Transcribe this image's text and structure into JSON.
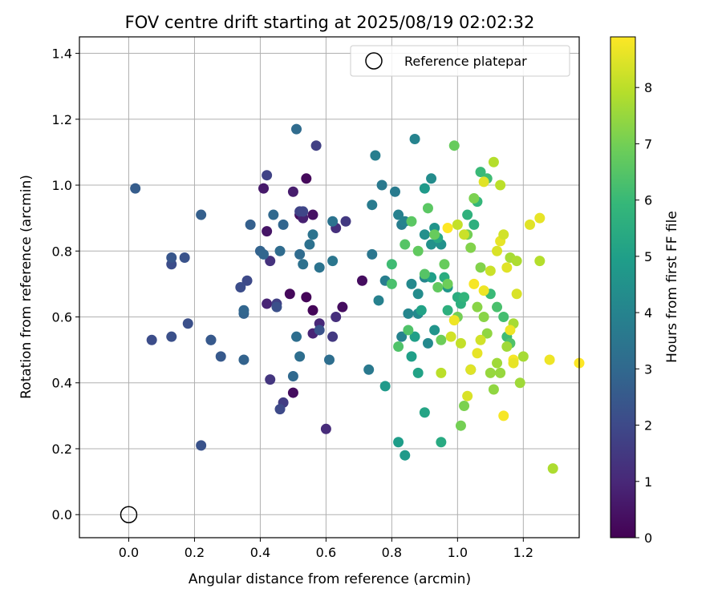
{
  "chart_data": {
    "type": "scatter",
    "title": "FOV centre drift starting at 2025/08/19 02:02:32",
    "xlabel": "Angular distance from reference (arcmin)",
    "ylabel": "Rotation from reference (arcmin)",
    "xlim": [
      -0.15,
      1.37
    ],
    "ylim": [
      -0.07,
      1.45
    ],
    "xticks": [
      "0.0",
      "0.2",
      "0.4",
      "0.6",
      "0.8",
      "1.0",
      "1.2"
    ],
    "xtick_values": [
      0.0,
      0.2,
      0.4,
      0.6,
      0.8,
      1.0,
      1.2
    ],
    "yticks": [
      "0.0",
      "0.2",
      "0.4",
      "0.6",
      "0.8",
      "1.0",
      "1.2",
      "1.4"
    ],
    "ytick_values": [
      0.0,
      0.2,
      0.4,
      0.6,
      0.8,
      1.0,
      1.2,
      1.4
    ],
    "grid": true,
    "legend": {
      "placement": "top-right",
      "entries": [
        "Reference platepar"
      ]
    },
    "reference_point": {
      "x": 0.0,
      "y": 0.0
    },
    "colorbar": {
      "label": "Hours from first FF file",
      "colormap": "viridis",
      "range": [
        0,
        8.9
      ],
      "ticks": [
        "0",
        "1",
        "2",
        "3",
        "4",
        "5",
        "6",
        "7",
        "8"
      ],
      "tick_values": [
        0,
        1,
        2,
        3,
        4,
        5,
        6,
        7,
        8
      ]
    },
    "points": [
      [
        0.52,
        0.91,
        0.3
      ],
      [
        0.54,
        1.02,
        0.2
      ],
      [
        0.56,
        0.91,
        0.4
      ],
      [
        0.49,
        0.67,
        0.2
      ],
      [
        0.54,
        0.66,
        0.1
      ],
      [
        0.56,
        0.62,
        0.1
      ],
      [
        0.5,
        0.37,
        0.3
      ],
      [
        0.71,
        0.71,
        0.3
      ],
      [
        0.65,
        0.63,
        0.3
      ],
      [
        0.42,
        0.86,
        0.5
      ],
      [
        0.41,
        0.99,
        0.6
      ],
      [
        0.5,
        0.98,
        0.7
      ],
      [
        0.53,
        0.9,
        0.8
      ],
      [
        0.42,
        0.64,
        0.9
      ],
      [
        0.56,
        0.55,
        0.9
      ],
      [
        0.58,
        0.58,
        1.0
      ],
      [
        0.6,
        0.26,
        1.1
      ],
      [
        0.63,
        0.6,
        1.2
      ],
      [
        0.63,
        0.87,
        1.2
      ],
      [
        0.66,
        0.89,
        1.5
      ],
      [
        0.43,
        0.77,
        1.3
      ],
      [
        0.43,
        0.41,
        1.4
      ],
      [
        0.47,
        0.34,
        1.6
      ],
      [
        0.45,
        0.64,
        1.7
      ],
      [
        0.62,
        0.54,
        1.5
      ],
      [
        0.57,
        1.12,
        1.7
      ],
      [
        0.42,
        1.03,
        1.8
      ],
      [
        0.52,
        0.92,
        1.8
      ],
      [
        0.53,
        0.92,
        1.9
      ],
      [
        0.36,
        0.71,
        2.0
      ],
      [
        0.34,
        0.69,
        2.1
      ],
      [
        0.45,
        0.63,
        2.2
      ],
      [
        0.46,
        0.32,
        2.0
      ],
      [
        0.58,
        0.56,
        2.3
      ],
      [
        0.07,
        0.53,
        2.1
      ],
      [
        0.13,
        0.54,
        2.2
      ],
      [
        0.13,
        0.76,
        2.1
      ],
      [
        0.13,
        0.78,
        2.4
      ],
      [
        0.17,
        0.78,
        2.3
      ],
      [
        0.18,
        0.58,
        2.2
      ],
      [
        0.22,
        0.21,
        2.3
      ],
      [
        0.25,
        0.53,
        2.4
      ],
      [
        0.25,
        0.53,
        2.5
      ],
      [
        0.28,
        0.48,
        2.5
      ],
      [
        0.02,
        0.99,
        2.6
      ],
      [
        0.22,
        0.91,
        2.7
      ],
      [
        0.35,
        0.61,
        2.8
      ],
      [
        0.35,
        0.62,
        2.9
      ],
      [
        0.35,
        0.47,
        2.8
      ],
      [
        0.37,
        0.88,
        2.7
      ],
      [
        0.4,
        0.8,
        2.8
      ],
      [
        0.41,
        0.79,
        2.9
      ],
      [
        0.44,
        0.91,
        3.0
      ],
      [
        0.46,
        0.8,
        3.1
      ],
      [
        0.47,
        0.88,
        2.9
      ],
      [
        0.5,
        0.42,
        3.0
      ],
      [
        0.51,
        0.54,
        3.2
      ],
      [
        0.51,
        1.17,
        3.1
      ],
      [
        0.52,
        0.79,
        3.1
      ],
      [
        0.52,
        0.48,
        3.2
      ],
      [
        0.53,
        0.76,
        3.3
      ],
      [
        0.55,
        0.82,
        3.3
      ],
      [
        0.56,
        0.85,
        3.4
      ],
      [
        0.58,
        0.75,
        3.4
      ],
      [
        0.61,
        0.47,
        3.2
      ],
      [
        0.62,
        0.89,
        3.4
      ],
      [
        0.62,
        0.77,
        3.5
      ],
      [
        0.73,
        0.44,
        3.6
      ],
      [
        0.74,
        0.94,
        3.7
      ],
      [
        0.74,
        0.79,
        3.5
      ],
      [
        0.75,
        1.09,
        3.8
      ],
      [
        0.76,
        0.65,
        3.9
      ],
      [
        0.77,
        1.0,
        3.6
      ],
      [
        0.78,
        0.71,
        3.8
      ],
      [
        0.81,
        0.98,
        3.7
      ],
      [
        0.82,
        0.91,
        3.9
      ],
      [
        0.83,
        0.88,
        3.8
      ],
      [
        0.83,
        0.54,
        4.0
      ],
      [
        0.84,
        0.89,
        4.0
      ],
      [
        0.85,
        0.61,
        4.1
      ],
      [
        0.86,
        0.7,
        4.2
      ],
      [
        0.87,
        1.14,
        4.0
      ],
      [
        0.88,
        0.61,
        4.2
      ],
      [
        0.88,
        0.67,
        4.3
      ],
      [
        0.9,
        0.72,
        4.1
      ],
      [
        0.9,
        0.85,
        4.4
      ],
      [
        0.91,
        0.52,
        4.2
      ],
      [
        0.92,
        0.82,
        4.5
      ],
      [
        0.92,
        1.02,
        4.3
      ],
      [
        0.93,
        0.87,
        4.6
      ],
      [
        0.95,
        0.82,
        4.5
      ],
      [
        0.97,
        0.69,
        4.7
      ],
      [
        0.9,
        0.99,
        4.8
      ],
      [
        0.93,
        0.56,
        4.6
      ],
      [
        0.78,
        0.39,
        4.8
      ],
      [
        0.82,
        0.22,
        4.9
      ],
      [
        0.84,
        0.18,
        4.8
      ],
      [
        0.86,
        0.48,
        5.0
      ],
      [
        0.87,
        0.54,
        5.0
      ],
      [
        0.89,
        0.62,
        5.1
      ],
      [
        0.88,
        0.43,
        5.1
      ],
      [
        0.9,
        0.31,
        5.2
      ],
      [
        0.92,
        0.72,
        5.0
      ],
      [
        0.94,
        0.84,
        5.3
      ],
      [
        0.95,
        0.22,
        5.4
      ],
      [
        0.96,
        0.72,
        5.5
      ],
      [
        0.97,
        0.62,
        5.6
      ],
      [
        1.0,
        0.66,
        5.5
      ],
      [
        1.01,
        0.64,
        5.6
      ],
      [
        1.02,
        0.66,
        5.8
      ],
      [
        1.03,
        0.91,
        5.7
      ],
      [
        1.04,
        0.44,
        5.9
      ],
      [
        1.05,
        0.88,
        5.6
      ],
      [
        1.06,
        0.95,
        5.9
      ],
      [
        1.07,
        1.04,
        6.0
      ],
      [
        1.09,
        1.02,
        6.1
      ],
      [
        1.1,
        0.67,
        6.0
      ],
      [
        1.12,
        0.63,
        6.3
      ],
      [
        1.14,
        0.6,
        6.2
      ],
      [
        1.15,
        0.54,
        6.1
      ],
      [
        1.16,
        0.52,
        6.4
      ],
      [
        0.8,
        0.76,
        6.1
      ],
      [
        0.8,
        0.7,
        6.3
      ],
      [
        0.82,
        0.51,
        6.4
      ],
      [
        0.84,
        0.82,
        6.5
      ],
      [
        0.85,
        0.56,
        6.4
      ],
      [
        0.86,
        0.89,
        6.6
      ],
      [
        0.88,
        0.8,
        6.7
      ],
      [
        0.9,
        0.73,
        6.5
      ],
      [
        0.91,
        0.93,
        6.6
      ],
      [
        0.93,
        0.85,
        6.8
      ],
      [
        0.94,
        0.69,
        6.7
      ],
      [
        0.95,
        0.53,
        6.9
      ],
      [
        0.96,
        0.76,
        6.8
      ],
      [
        0.97,
        0.7,
        6.9
      ],
      [
        0.99,
        1.12,
        6.8
      ],
      [
        1.0,
        0.6,
        7.0
      ],
      [
        1.01,
        0.27,
        7.0
      ],
      [
        1.02,
        0.33,
        7.1
      ],
      [
        1.03,
        0.85,
        7.0
      ],
      [
        1.04,
        0.81,
        7.2
      ],
      [
        1.05,
        0.96,
        7.1
      ],
      [
        1.06,
        0.63,
        7.3
      ],
      [
        1.07,
        0.75,
        7.2
      ],
      [
        1.08,
        0.6,
        7.3
      ],
      [
        1.09,
        0.55,
        7.4
      ],
      [
        1.1,
        0.43,
        7.5
      ],
      [
        1.11,
        0.38,
        7.4
      ],
      [
        1.12,
        0.46,
        7.6
      ],
      [
        1.13,
        0.43,
        7.5
      ],
      [
        1.15,
        0.51,
        7.6
      ],
      [
        1.16,
        0.78,
        7.7
      ],
      [
        1.17,
        0.58,
        7.7
      ],
      [
        1.18,
        0.77,
        7.8
      ],
      [
        1.19,
        0.4,
        7.6
      ],
      [
        1.2,
        0.48,
        7.7
      ],
      [
        1.25,
        0.77,
        7.9
      ],
      [
        1.29,
        0.14,
        7.8
      ],
      [
        1.11,
        1.07,
        7.9
      ],
      [
        1.13,
        1.0,
        8.0
      ],
      [
        1.0,
        0.88,
        8.1
      ],
      [
        1.02,
        0.85,
        8.2
      ],
      [
        0.95,
        0.43,
        8.0
      ],
      [
        1.01,
        0.52,
        8.1
      ],
      [
        0.98,
        0.54,
        8.3
      ],
      [
        1.03,
        0.36,
        8.4
      ],
      [
        1.04,
        0.44,
        8.5
      ],
      [
        1.06,
        0.49,
        8.6
      ],
      [
        1.07,
        0.53,
        8.3
      ],
      [
        1.08,
        0.68,
        8.7
      ],
      [
        1.08,
        1.01,
        8.5
      ],
      [
        1.1,
        0.74,
        8.2
      ],
      [
        1.12,
        0.8,
        8.4
      ],
      [
        1.13,
        0.83,
        8.6
      ],
      [
        1.14,
        0.85,
        8.3
      ],
      [
        1.15,
        0.75,
        8.5
      ],
      [
        1.16,
        0.56,
        8.7
      ],
      [
        1.17,
        0.47,
        8.8
      ],
      [
        1.17,
        0.46,
        8.6
      ],
      [
        1.18,
        0.67,
        8.4
      ],
      [
        1.22,
        0.88,
        8.5
      ],
      [
        1.25,
        0.9,
        8.6
      ],
      [
        1.28,
        0.47,
        8.7
      ],
      [
        1.14,
        0.3,
        8.8
      ],
      [
        1.37,
        0.46,
        8.9
      ],
      [
        0.99,
        0.59,
        8.7
      ],
      [
        1.05,
        0.7,
        8.8
      ],
      [
        0.97,
        0.87,
        8.9
      ]
    ]
  }
}
